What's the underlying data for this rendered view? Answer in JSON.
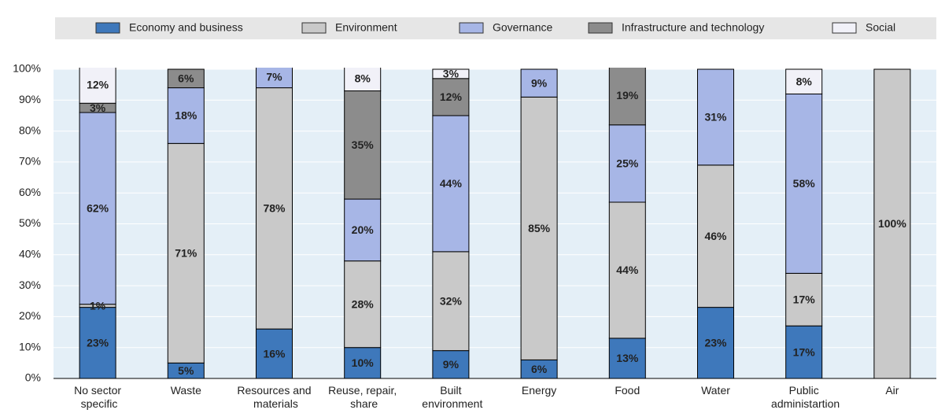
{
  "chart_data": {
    "type": "stacked_bar",
    "categories": [
      "No sector\nspecific",
      "Waste",
      "Resources and\nmaterials",
      "Reuse, repair,\nshare",
      "Built\nenvironment",
      "Energy",
      "Food",
      "Water",
      "Public\nadministartion",
      "Air"
    ],
    "series": [
      {
        "name": "Economy and business",
        "color": "#3e78bb",
        "values": [
          23,
          5,
          16,
          10,
          9,
          6,
          13,
          23,
          17,
          null
        ],
        "value_labels": [
          "23%",
          "5%",
          "16%",
          "10%",
          "9%",
          "6%",
          "13%",
          "23%",
          "17%",
          null
        ]
      },
      {
        "name": "Environment",
        "color": "#c9c9c9",
        "values": [
          1,
          71,
          78,
          28,
          32,
          85,
          44,
          46,
          17,
          100
        ],
        "value_labels": [
          "1%",
          "71%",
          "78%",
          "28%",
          "32%",
          "85%",
          "44%",
          "46%",
          "17%",
          "100%"
        ]
      },
      {
        "name": "Governance",
        "color": "#a7b6e6",
        "values": [
          62,
          18,
          7,
          20,
          44,
          9,
          25,
          31,
          58,
          null
        ],
        "value_labels": [
          "62%",
          "18%",
          "7%",
          "20%",
          "44%",
          "9%",
          "25%",
          "31%",
          "58%",
          null
        ]
      },
      {
        "name": "Infrastructure and technology",
        "color": "#8c8c8c",
        "values": [
          3,
          6,
          null,
          35,
          12,
          null,
          19,
          null,
          null,
          null
        ],
        "value_labels": [
          "3%",
          "6%",
          null,
          "35%",
          "12%",
          null,
          "19%",
          null,
          null,
          null
        ]
      },
      {
        "name": "Social",
        "color": "#f1f1f8",
        "values": [
          12,
          null,
          null,
          8,
          3,
          null,
          null,
          null,
          8,
          null
        ],
        "value_labels": [
          "12%",
          null,
          null,
          "8%",
          "3%",
          null,
          null,
          null,
          "8%",
          null
        ]
      }
    ],
    "ylim": [
      0,
      100
    ],
    "yticks": [
      {
        "value": 0,
        "label": "0%"
      },
      {
        "value": 10,
        "label": "10%"
      },
      {
        "value": 20,
        "label": "20%"
      },
      {
        "value": 30,
        "label": "30%"
      },
      {
        "value": 40,
        "label": "40%"
      },
      {
        "value": 50,
        "label": "50%"
      },
      {
        "value": 60,
        "label": "60%"
      },
      {
        "value": 70,
        "label": "70%"
      },
      {
        "value": 80,
        "label": "80%"
      },
      {
        "value": 90,
        "label": "90%"
      },
      {
        "value": 100,
        "label": "100%"
      }
    ],
    "grid": true,
    "legend": "top"
  }
}
